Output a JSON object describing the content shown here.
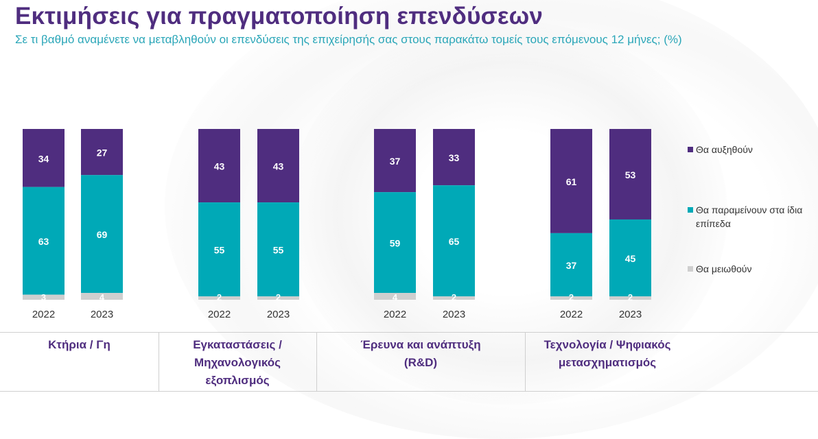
{
  "header": {
    "title": "Εκτιμήσεις για πραγματοποίηση επενδύσεων",
    "subtitle": "Σε τι βαθμό αναμένετε να μεταβληθούν οι επενδύσεις της επιχείρησής σας στους παρακάτω τομείς τους επόμενους 12 μήνες; (%)"
  },
  "colors": {
    "increase": "#4f2d7f",
    "same": "#00a9b7",
    "decrease": "#cfcfcf"
  },
  "legend": {
    "increase": "Θα αυξηθούν",
    "same": "Θα παραμείνουν στα ίδια επίπεδα",
    "decrease": "Θα μειωθούν"
  },
  "categories": [
    {
      "label": "Κτήρια / Γη"
    },
    {
      "label": "Εγκαταστάσεις / Μηχανολογικός εξοπλισμός"
    },
    {
      "label": "Έρευνα και ανάπτυξη (R&D)"
    },
    {
      "label": "Τεχνολογία / Ψηφιακός μετασχηματισμός"
    }
  ],
  "chart_data": {
    "type": "bar",
    "stacked": true,
    "groups": [
      {
        "category": "Κτήρια / Γη",
        "bars": [
          {
            "year": "2022",
            "increase": 34,
            "same": 63,
            "decrease": 3
          },
          {
            "year": "2023",
            "increase": 27,
            "same": 69,
            "decrease": 4
          }
        ]
      },
      {
        "category": "Εγκαταστάσεις / Μηχανολογικός εξοπλισμός",
        "bars": [
          {
            "year": "2022",
            "increase": 43,
            "same": 55,
            "decrease": 2
          },
          {
            "year": "2023",
            "increase": 43,
            "same": 55,
            "decrease": 2
          }
        ]
      },
      {
        "category": "Έρευνα και ανάπτυξη (R&D)",
        "bars": [
          {
            "year": "2022",
            "increase": 37,
            "same": 59,
            "decrease": 4
          },
          {
            "year": "2023",
            "increase": 33,
            "same": 65,
            "decrease": 2
          }
        ]
      },
      {
        "category": "Τεχνολογία / Ψηφιακός μετασχηματισμός",
        "bars": [
          {
            "year": "2022",
            "increase": 61,
            "same": 37,
            "decrease": 2
          },
          {
            "year": "2023",
            "increase": 53,
            "same": 45,
            "decrease": 2
          }
        ]
      }
    ],
    "series": [
      {
        "key": "increase",
        "name": "Θα αυξηθούν"
      },
      {
        "key": "same",
        "name": "Θα παραμείνουν στα ίδια επίπεδα"
      },
      {
        "key": "decrease",
        "name": "Θα μειωθούν"
      }
    ],
    "ylim": [
      0,
      100
    ],
    "legend_position": "right",
    "grid": false
  }
}
